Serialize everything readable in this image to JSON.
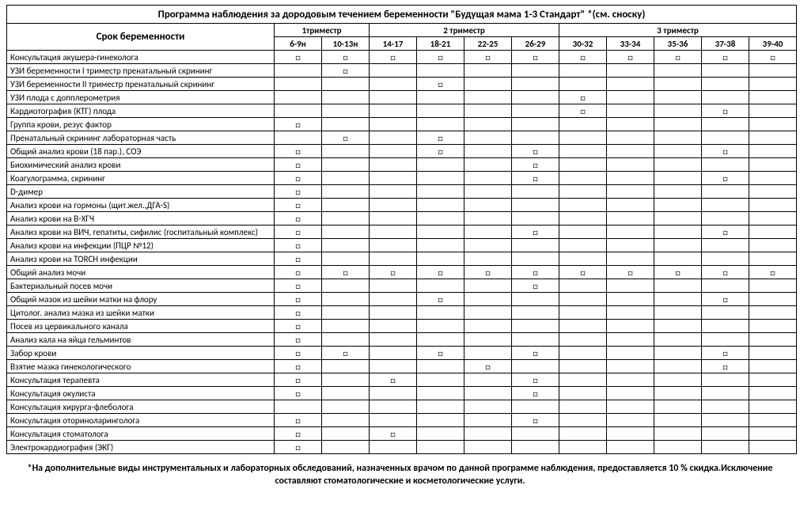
{
  "title": "Программа наблюдения за дородовым течением беременности \"Будущая мама  1-3 Стандарт\" *(см. сноску)",
  "row_header": "Срок  беременности",
  "groups": [
    {
      "label": "1триместр",
      "span": 2
    },
    {
      "label": "2 триместр",
      "span": 4
    },
    {
      "label": "3 триместр",
      "span": 5
    }
  ],
  "weeks": [
    "6-9н",
    "10-13н",
    "14-17",
    "18-21",
    "22-25",
    "26-29",
    "30-32",
    "33-34",
    "35-36",
    "37-38",
    "39-40"
  ],
  "checkbox_glyph": "□",
  "rows": [
    {
      "label": "Консультация акушера-гинеколога",
      "marks": [
        1,
        1,
        1,
        1,
        1,
        1,
        1,
        1,
        1,
        1,
        1
      ]
    },
    {
      "label": "УЗИ беременности I триместр пренатальный скрининг",
      "marks": [
        0,
        1,
        0,
        0,
        0,
        0,
        0,
        0,
        0,
        0,
        0
      ]
    },
    {
      "label": "УЗИ беременности II триместр пренатальный скрининг",
      "marks": [
        0,
        0,
        0,
        1,
        0,
        0,
        0,
        0,
        0,
        0,
        0
      ]
    },
    {
      "label": "УЗИ плода с допплерометрия",
      "marks": [
        0,
        0,
        0,
        0,
        0,
        0,
        1,
        0,
        0,
        0,
        0
      ]
    },
    {
      "label": "Кардиотография (КТГ) плода",
      "marks": [
        0,
        0,
        0,
        0,
        0,
        0,
        1,
        0,
        0,
        1,
        0
      ]
    },
    {
      "label": "Группа крови, резус фактор",
      "marks": [
        1,
        0,
        0,
        0,
        0,
        0,
        0,
        0,
        0,
        0,
        0
      ]
    },
    {
      "label": "Пренатальный скрининг лабораторная часть",
      "marks": [
        0,
        1,
        0,
        1,
        0,
        0,
        0,
        0,
        0,
        0,
        0
      ]
    },
    {
      "label": "Общий анализ крови (18 пар.), СОЭ",
      "marks": [
        1,
        0,
        0,
        1,
        0,
        1,
        0,
        0,
        0,
        1,
        0
      ]
    },
    {
      "label": "Биохимический анализ крови",
      "marks": [
        1,
        0,
        0,
        0,
        0,
        1,
        0,
        0,
        0,
        0,
        0
      ]
    },
    {
      "label": "Коагулограмма, скрининг",
      "marks": [
        1,
        0,
        0,
        0,
        0,
        1,
        0,
        0,
        0,
        1,
        0
      ]
    },
    {
      "label": "D-димер",
      "marks": [
        1,
        0,
        0,
        0,
        0,
        0,
        0,
        0,
        0,
        0,
        0
      ]
    },
    {
      "label": "Анализ крови на гормоны (щит.жел.,ДГА-S)",
      "marks": [
        1,
        0,
        0,
        0,
        0,
        0,
        0,
        0,
        0,
        0,
        0
      ]
    },
    {
      "label": "Анализ крови на В-ХГЧ",
      "marks": [
        1,
        0,
        0,
        0,
        0,
        0,
        0,
        0,
        0,
        0,
        0
      ]
    },
    {
      "label": "Анализ крови на ВИЧ, гепатиты, сифилис (госпитальный комплекс)",
      "marks": [
        1,
        0,
        0,
        0,
        0,
        1,
        0,
        0,
        0,
        1,
        0
      ]
    },
    {
      "label": "Анализ крови на инфекции (ПЦР №12)",
      "marks": [
        1,
        0,
        0,
        0,
        0,
        0,
        0,
        0,
        0,
        0,
        0
      ]
    },
    {
      "label": "Анализ крови на TORCH инфекции",
      "marks": [
        1,
        0,
        0,
        0,
        0,
        0,
        0,
        0,
        0,
        0,
        0
      ]
    },
    {
      "label": "Общий анализ мочи",
      "marks": [
        1,
        1,
        1,
        1,
        1,
        1,
        1,
        1,
        1,
        1,
        1
      ]
    },
    {
      "label": "Бактериальный посев мочи",
      "marks": [
        1,
        0,
        0,
        0,
        0,
        1,
        0,
        0,
        0,
        0,
        0
      ]
    },
    {
      "label": "Общий мазок из шейки матки на флору",
      "marks": [
        1,
        0,
        0,
        1,
        0,
        0,
        0,
        0,
        0,
        1,
        0
      ]
    },
    {
      "label": "Цитолог. анализ мазка из шейки матки",
      "marks": [
        1,
        0,
        0,
        0,
        0,
        0,
        0,
        0,
        0,
        0,
        0
      ]
    },
    {
      "label": "Посев из цервикального канала",
      "marks": [
        1,
        0,
        0,
        0,
        0,
        0,
        0,
        0,
        0,
        0,
        0
      ]
    },
    {
      "label": "Анализ кала на яйца гельминтов",
      "marks": [
        1,
        0,
        0,
        0,
        0,
        0,
        0,
        0,
        0,
        0,
        0
      ]
    },
    {
      "label": "Забор крови",
      "marks": [
        1,
        1,
        0,
        1,
        0,
        1,
        0,
        0,
        0,
        1,
        0
      ]
    },
    {
      "label": "Взятие мазка гинекологического",
      "marks": [
        1,
        0,
        0,
        0,
        1,
        0,
        0,
        0,
        0,
        1,
        0
      ]
    },
    {
      "label": "Консультация терапевта",
      "marks": [
        1,
        0,
        1,
        0,
        0,
        1,
        0,
        0,
        0,
        0,
        0
      ]
    },
    {
      "label": "Консультация окулиста",
      "marks": [
        1,
        0,
        0,
        0,
        0,
        1,
        0,
        0,
        0,
        0,
        0
      ]
    },
    {
      "label": "Консультация хирурга-флеболога",
      "marks": [
        0,
        0,
        0,
        0,
        0,
        0,
        0,
        0,
        0,
        0,
        0
      ]
    },
    {
      "label": "Консультация оториноларинголога",
      "marks": [
        1,
        0,
        0,
        0,
        0,
        1,
        0,
        0,
        0,
        0,
        0
      ]
    },
    {
      "label": "Консультация стоматолога",
      "marks": [
        1,
        0,
        1,
        0,
        0,
        0,
        0,
        0,
        0,
        0,
        0
      ]
    },
    {
      "label": "Электрокардиография (ЭКГ)",
      "marks": [
        1,
        0,
        0,
        0,
        0,
        0,
        0,
        0,
        0,
        0,
        0
      ]
    }
  ],
  "footnote": "*На дополнительные виды инструментальных и лабораторных обследований, назначенных врачом по данной программе наблюдения, предоставляется 10 % скидка.Исключение составляют стоматологические и косметологические услуги."
}
